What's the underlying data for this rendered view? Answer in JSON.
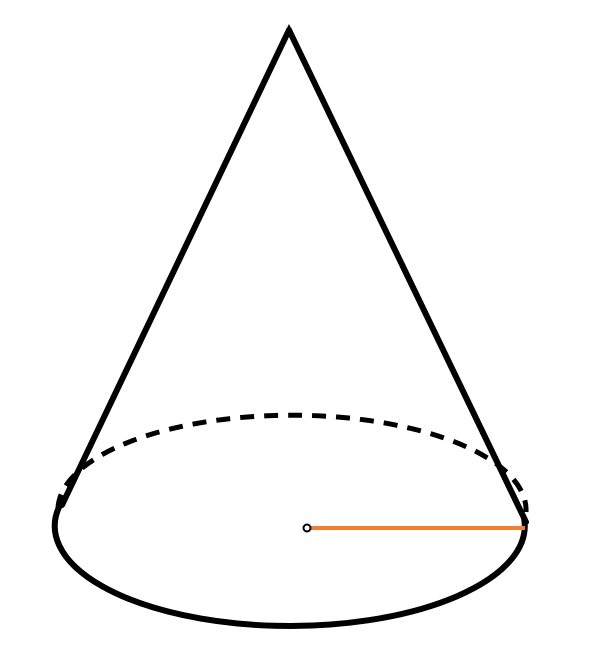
{
  "figure": {
    "shape": "cone",
    "base_front_edge": "solid",
    "base_back_edge": "dashed",
    "radius_segment": "highlighted",
    "center_point": "marked"
  },
  "colors": {
    "outline": "#000000",
    "radius": "#f08030",
    "background": "#ffffff"
  }
}
